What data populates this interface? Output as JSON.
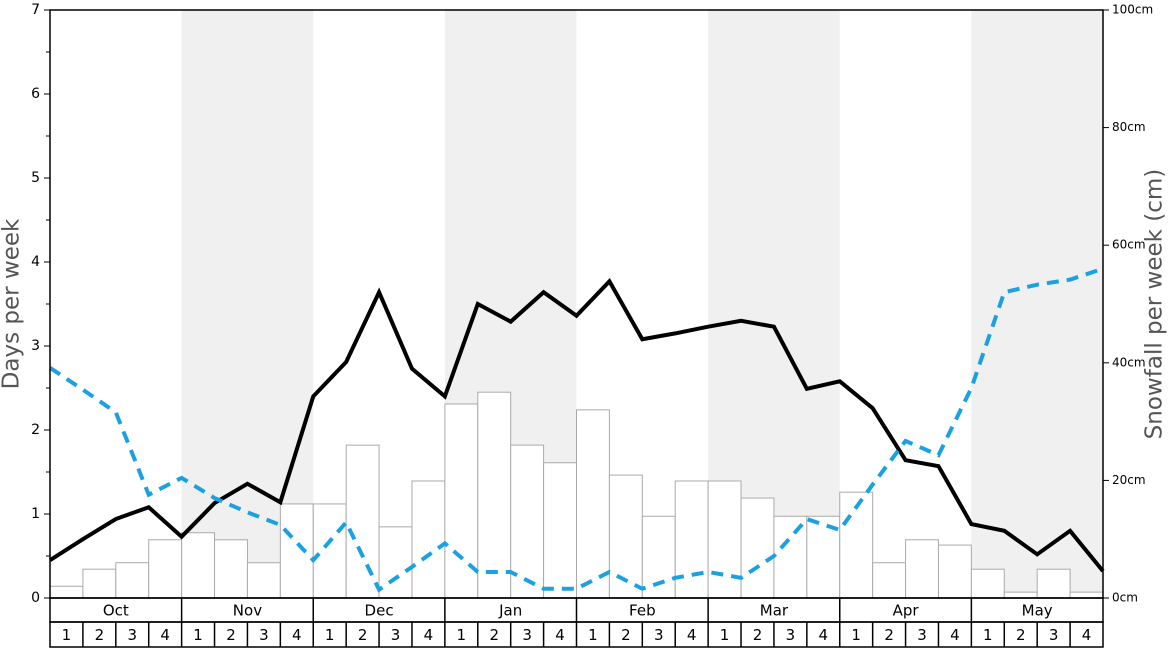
{
  "chart_data": {
    "type": "bar-line",
    "ylabel": "Days per week",
    "y2label": "Snowfall per week (cm)",
    "months": [
      "Oct",
      "Nov",
      "Dec",
      "Jan",
      "Feb",
      "Mar",
      "Apr",
      "May"
    ],
    "categories": [
      "1",
      "2",
      "3",
      "4",
      "1",
      "2",
      "3",
      "4",
      "1",
      "2",
      "3",
      "4",
      "1",
      "2",
      "3",
      "4",
      "1",
      "2",
      "3",
      "4",
      "1",
      "2",
      "3",
      "4",
      "1",
      "2",
      "3",
      "4",
      "1",
      "2",
      "3",
      "4"
    ],
    "ylim": [
      0,
      7
    ],
    "yticks": [
      0,
      1,
      2,
      3,
      4,
      5,
      6,
      7
    ],
    "y2lim": [
      0,
      100
    ],
    "y2ticks": [
      {
        "value": 0,
        "label": "0cm"
      },
      {
        "value": 20,
        "label": "20cm"
      },
      {
        "value": 40,
        "label": "40cm"
      },
      {
        "value": 60,
        "label": "60cm"
      },
      {
        "value": 80,
        "label": "80cm"
      },
      {
        "value": 100,
        "label": "100cm"
      }
    ],
    "xlim": [
      0,
      32
    ],
    "x": [
      0,
      1,
      2,
      3,
      4,
      5,
      6,
      7,
      8,
      9,
      10,
      11,
      12,
      13,
      14,
      15,
      16,
      17,
      18,
      19,
      20,
      21,
      22,
      23,
      24,
      25,
      26,
      27,
      28,
      29,
      30,
      31,
      32
    ],
    "series": [
      {
        "type": "bar",
        "axis": "y2",
        "color": "#ffffff",
        "stroke": "#aaaaaa",
        "values": [
          2.0,
          4.9,
          6.0,
          9.9,
          11.1,
          9.9,
          6.0,
          16.0,
          16.0,
          26.0,
          12.1,
          19.9,
          33.0,
          35.0,
          26.0,
          23.0,
          32.0,
          20.9,
          13.9,
          19.9,
          19.9,
          17.0,
          13.9,
          13.9,
          18.0,
          6.0,
          9.9,
          9.0,
          4.9,
          1.0,
          4.9,
          1.0
        ]
      },
      {
        "type": "line",
        "color": "#000000",
        "dashed": false,
        "values": [
          0.45,
          0.7,
          0.94,
          1.08,
          0.73,
          1.13,
          1.36,
          1.14,
          2.4,
          2.81,
          3.64,
          2.73,
          2.4,
          3.5,
          3.29,
          3.64,
          3.36,
          3.77,
          3.08,
          3.15,
          3.23,
          3.3,
          3.23,
          2.49,
          2.58,
          2.26,
          1.64,
          1.57,
          0.88,
          0.8,
          0.52,
          0.8,
          0.32
        ]
      },
      {
        "type": "line",
        "color": "#1ba1e2",
        "dashed": true,
        "values": [
          2.74,
          2.48,
          2.21,
          1.23,
          1.43,
          1.19,
          1.02,
          0.87,
          0.45,
          0.9,
          0.1,
          0.37,
          0.65,
          0.31,
          0.31,
          0.11,
          0.11,
          0.31,
          0.11,
          0.24,
          0.31,
          0.24,
          0.5,
          0.94,
          0.81,
          1.35,
          1.87,
          1.7,
          2.5,
          3.64,
          3.73,
          3.79,
          3.92
        ]
      }
    ]
  }
}
